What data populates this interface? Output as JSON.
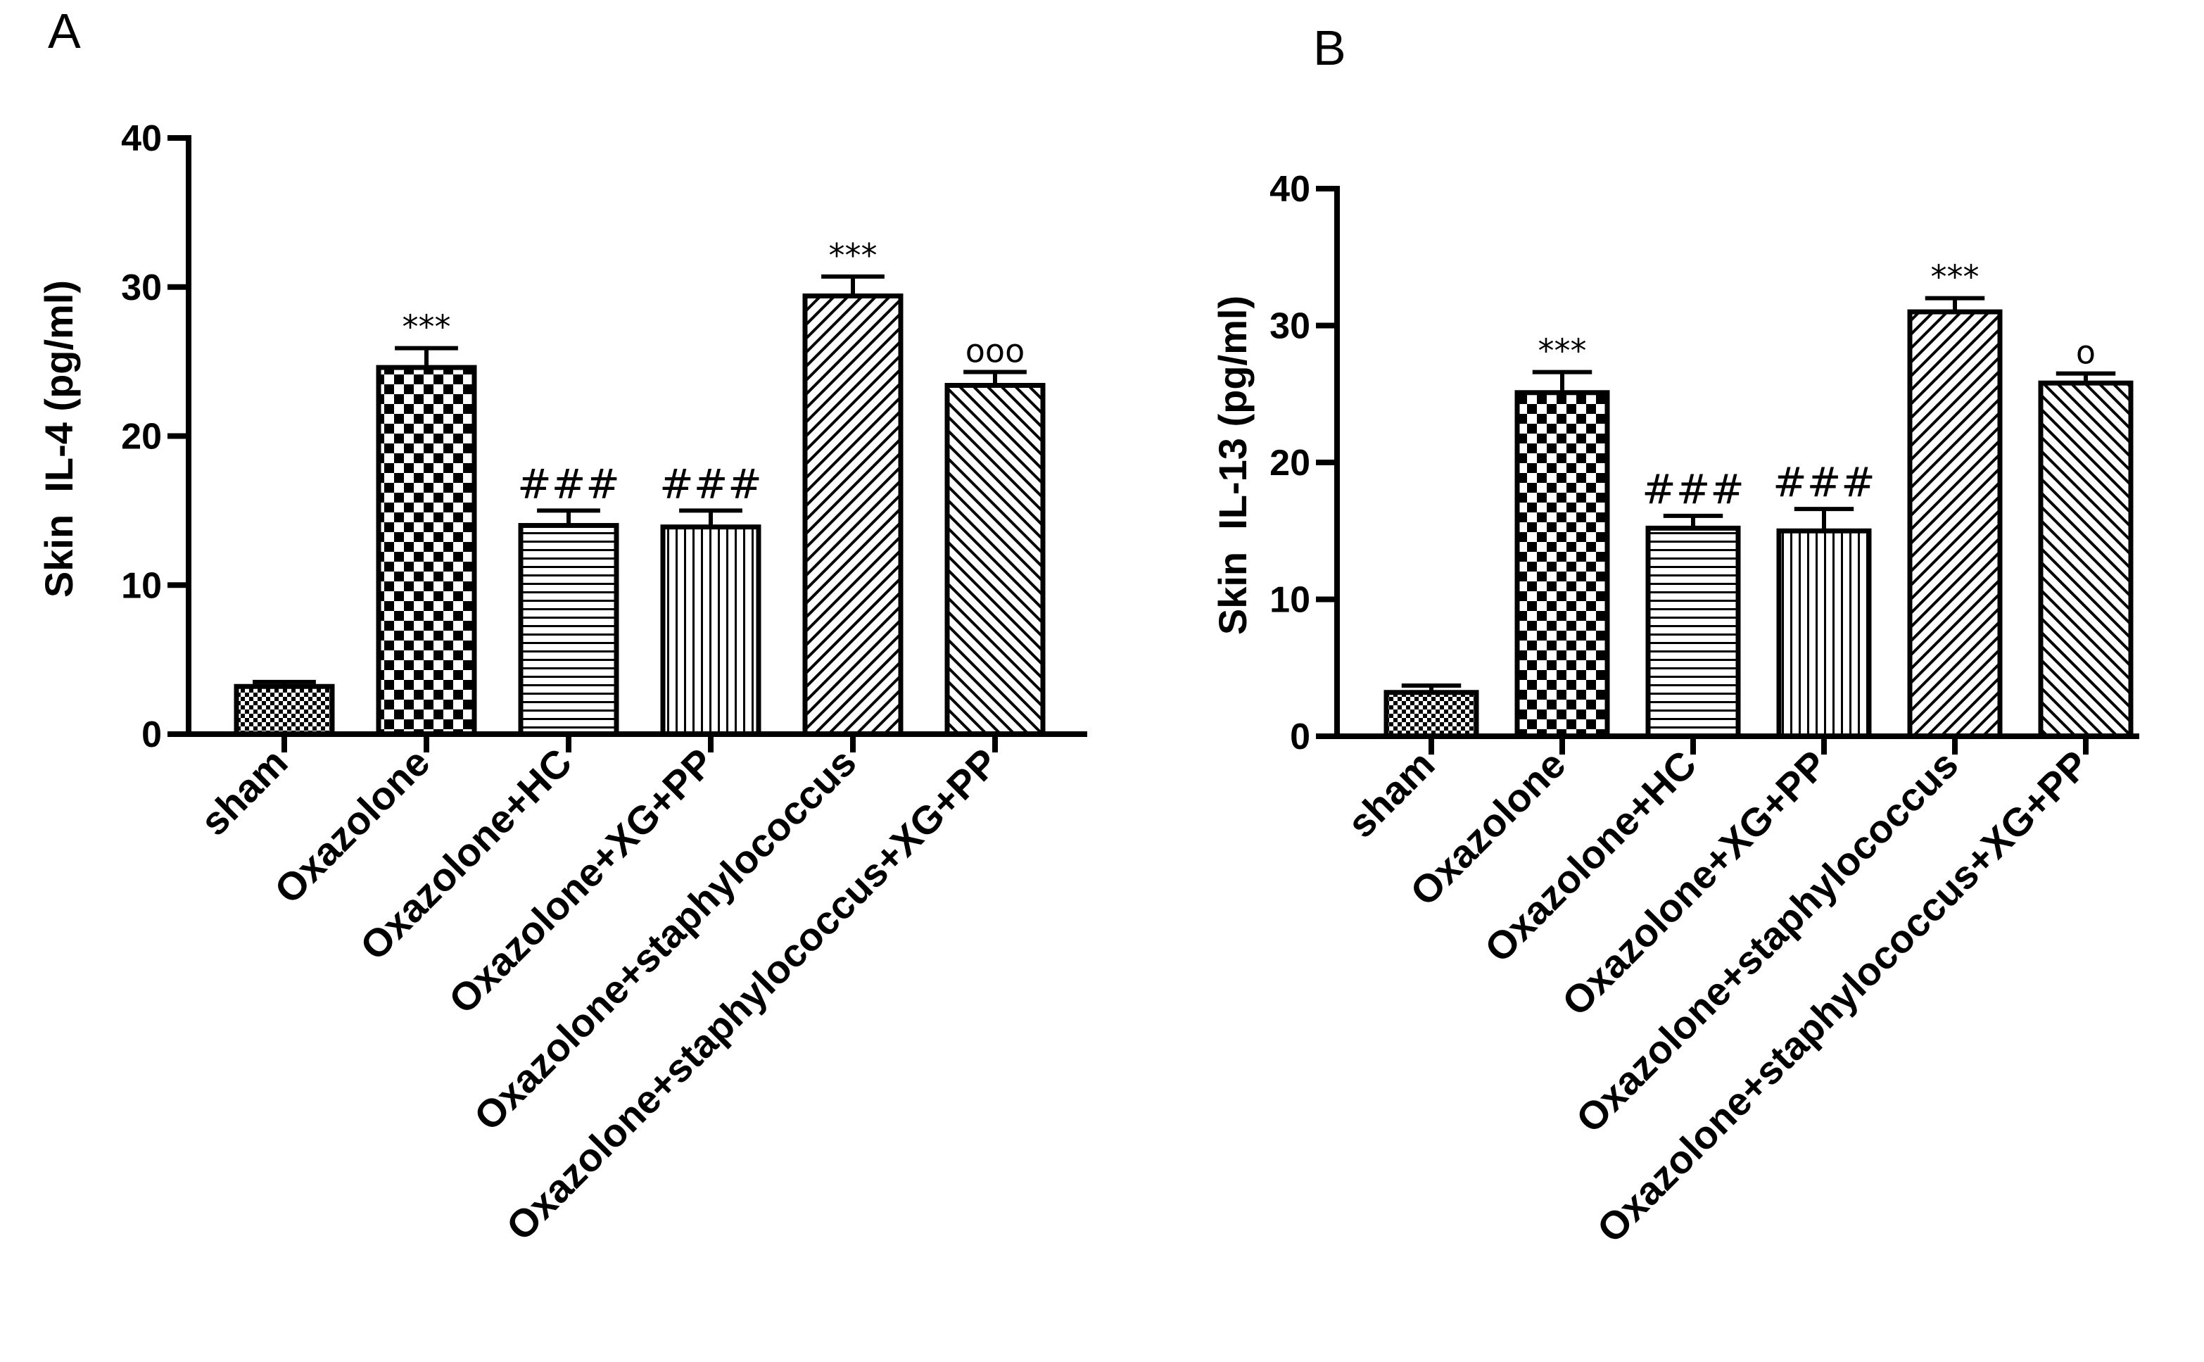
{
  "chart_data": [
    {
      "panel": "A",
      "type": "bar",
      "ylabel": "Skin  IL-4 (pg/ml)",
      "ylim": [
        0,
        40
      ],
      "yticks": [
        "0",
        "10",
        "20",
        "30",
        "40"
      ],
      "categories": [
        "sham",
        "Oxazolone",
        "Oxazolone+HC",
        "Oxazolone+XG+PP",
        "Oxazolone+staphylococcus",
        "Oxazolone+staphylococcus+XG+PP"
      ],
      "values": [
        3.2,
        24.6,
        14.0,
        13.9,
        29.4,
        23.4
      ],
      "errors": [
        0.3,
        1.3,
        1.0,
        1.1,
        1.3,
        0.9
      ],
      "annotations": [
        "",
        "***",
        "###",
        "###",
        "***",
        "ooo"
      ],
      "patterns": [
        "fine-check",
        "check",
        "hlines",
        "vlines",
        "diag-fwd",
        "diag-back"
      ]
    },
    {
      "panel": "B",
      "type": "bar",
      "ylabel": "Skin  IL-13 (pg/ml)",
      "ylim": [
        0,
        40
      ],
      "yticks": [
        "0",
        "10",
        "20",
        "30",
        "40"
      ],
      "categories": [
        "sham",
        "Oxazolone",
        "Oxazolone+HC",
        "Oxazolone+XG+PP",
        "Oxazolone+staphylococcus",
        "Oxazolone+staphylococcus+XG+PP"
      ],
      "values": [
        3.2,
        25.1,
        15.2,
        15.0,
        31.0,
        25.8
      ],
      "errors": [
        0.5,
        1.5,
        0.9,
        1.6,
        1.0,
        0.7
      ],
      "annotations": [
        "",
        "***",
        "###",
        "###",
        "***",
        "o"
      ],
      "patterns": [
        "fine-check",
        "check",
        "hlines",
        "vlines",
        "diag-fwd",
        "diag-back"
      ]
    }
  ]
}
